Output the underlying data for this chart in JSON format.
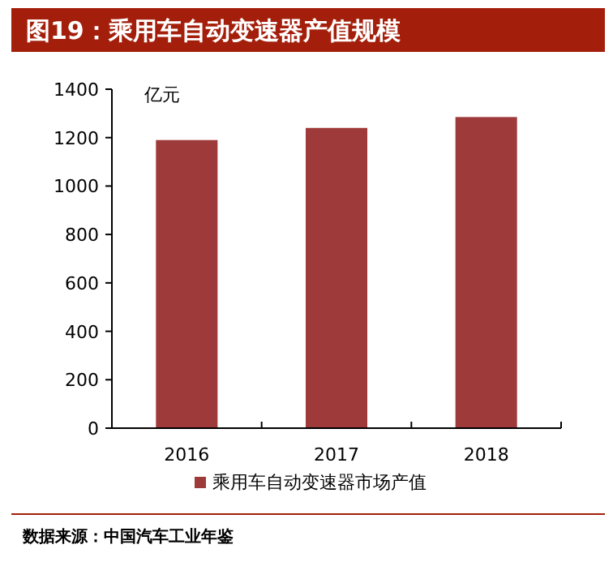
{
  "chart_data": {
    "type": "bar",
    "title": "图19：乘用车自动变速器产值规模",
    "ylabel": "亿元",
    "categories": [
      "2016",
      "2017",
      "2018"
    ],
    "series": [
      {
        "name": "乘用车自动变速器市场产值",
        "color": "#9e3a3a",
        "values": [
          1190,
          1240,
          1285
        ]
      }
    ],
    "ylim": [
      0,
      1400
    ],
    "yticks": [
      0,
      200,
      400,
      600,
      800,
      1000,
      1200,
      1400
    ],
    "legend": "bottom",
    "grid": false,
    "annotations": [
      "数据来源：中国汽车工业年鉴"
    ]
  }
}
